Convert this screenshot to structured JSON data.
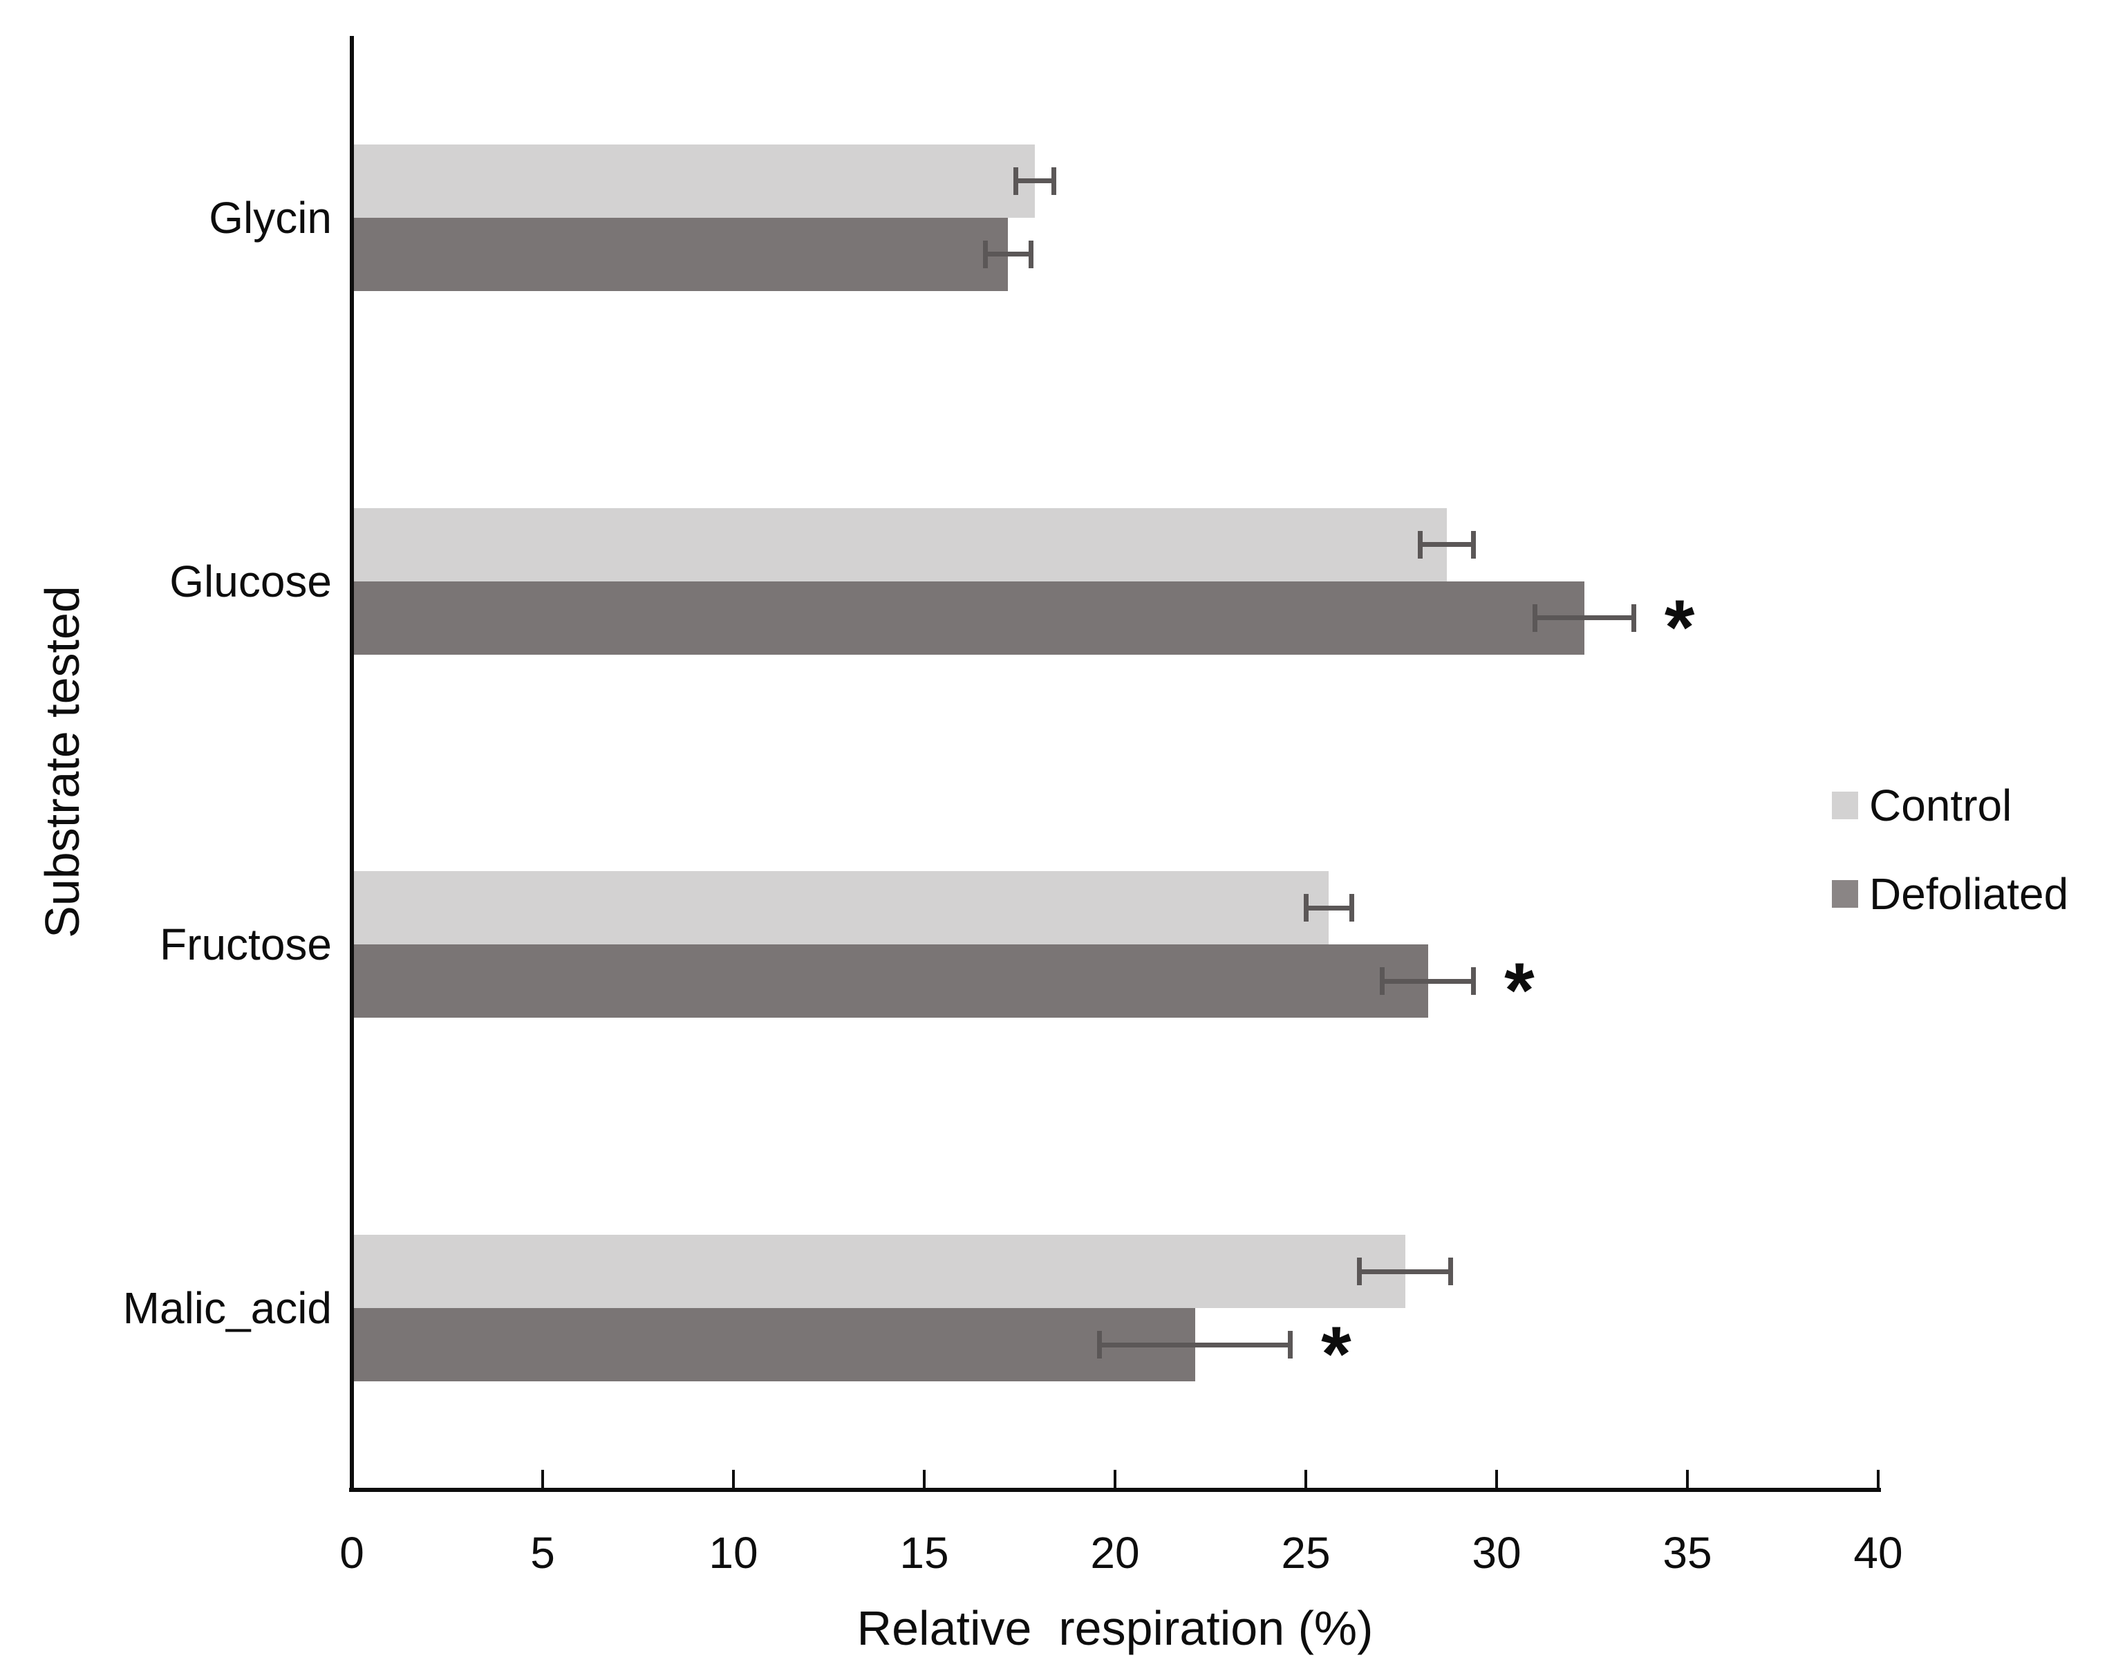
{
  "chart_data": {
    "type": "bar",
    "orientation": "horizontal",
    "xlabel": "Relative  respiration (%)",
    "ylabel": "Substrate tested",
    "xlim": [
      0,
      40
    ],
    "xticks": [
      0,
      5,
      10,
      15,
      20,
      25,
      30,
      35,
      40
    ],
    "categories": [
      "Glycin",
      "Glucose",
      "Fructose",
      "Malic_acid"
    ],
    "series": [
      {
        "name": "Control",
        "color": "#d3d2d2",
        "values": [
          17.9,
          28.7,
          25.6,
          27.6
        ],
        "errors": [
          0.5,
          0.7,
          0.6,
          1.2
        ],
        "significant": [
          false,
          false,
          false,
          false
        ]
      },
      {
        "name": "Defoliated",
        "color": "#7a7575",
        "values": [
          17.2,
          32.3,
          28.2,
          22.1
        ],
        "errors": [
          0.6,
          1.3,
          1.2,
          2.5
        ],
        "significant": [
          false,
          true,
          true,
          true
        ]
      }
    ],
    "significance_marker": "*",
    "legend_swatch_colors": [
      "#d3d2d2",
      "#8a8585"
    ],
    "error_bar_color": "#5b5757",
    "axis_color": "#0d0d0d",
    "text_color": "#0d0d0d",
    "background_color": "#ffffff",
    "legend_position": "right",
    "grid": false
  }
}
